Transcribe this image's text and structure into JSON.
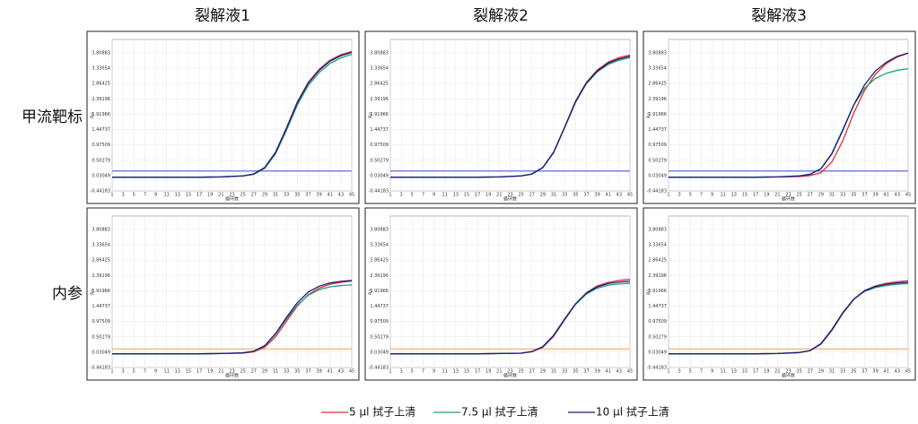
{
  "axes": {
    "xlim": [
      1,
      45
    ],
    "ylim": [
      -0.44183,
      4.22
    ],
    "xticks": [
      1,
      3,
      5,
      7,
      9,
      11,
      13,
      15,
      17,
      19,
      21,
      23,
      25,
      27,
      29,
      31,
      33,
      35,
      37,
      39,
      41,
      43,
      45
    ],
    "yticks": [
      -0.44183,
      0.03049,
      0.50279,
      0.97509,
      1.44737,
      1.91966,
      2.39196,
      2.86425,
      3.33654,
      3.80883
    ],
    "x_label": "循环数",
    "y_label": "Rn",
    "grid": true
  },
  "row_labels": [
    "甲流靶标",
    "内参"
  ],
  "legend": [
    {
      "name": "5 μl 拭子上清",
      "color": "#e03030"
    },
    {
      "name": "7.5 μl 拭子上清",
      "color": "#1aa37a"
    },
    {
      "name": "10 μl 拭子上清",
      "color": "#1a1a80"
    }
  ],
  "chart_data": [
    {
      "type": "line",
      "title": "裂解液1",
      "x": [
        1,
        5,
        9,
        13,
        17,
        21,
        25,
        27,
        29,
        31,
        33,
        35,
        37,
        39,
        41,
        43,
        45
      ],
      "threshold": {
        "value": 0.17,
        "color": "#4a5ad8"
      },
      "series": [
        {
          "values": [
            -0.02,
            -0.02,
            -0.02,
            -0.02,
            -0.02,
            -0.01,
            0.02,
            0.08,
            0.28,
            0.75,
            1.5,
            2.3,
            2.9,
            3.3,
            3.58,
            3.75,
            3.85
          ]
        },
        {
          "values": [
            -0.02,
            -0.02,
            -0.02,
            -0.02,
            -0.02,
            -0.01,
            0.02,
            0.07,
            0.25,
            0.7,
            1.42,
            2.2,
            2.8,
            3.2,
            3.48,
            3.65,
            3.76
          ]
        },
        {
          "values": [
            -0.02,
            -0.02,
            -0.02,
            -0.02,
            -0.02,
            -0.01,
            0.02,
            0.08,
            0.27,
            0.74,
            1.48,
            2.27,
            2.87,
            3.27,
            3.55,
            3.72,
            3.82
          ]
        }
      ]
    },
    {
      "type": "line",
      "title": "裂解液2",
      "x": [
        1,
        5,
        9,
        13,
        17,
        21,
        25,
        27,
        29,
        31,
        33,
        35,
        37,
        39,
        41,
        43,
        45
      ],
      "threshold": {
        "value": 0.17,
        "color": "#4a5ad8"
      },
      "series": [
        {
          "values": [
            -0.02,
            -0.02,
            -0.02,
            -0.02,
            -0.02,
            -0.01,
            0.02,
            0.08,
            0.28,
            0.76,
            1.52,
            2.32,
            2.9,
            3.28,
            3.52,
            3.66,
            3.74
          ]
        },
        {
          "values": [
            -0.02,
            -0.02,
            -0.02,
            -0.02,
            -0.02,
            -0.01,
            0.02,
            0.08,
            0.27,
            0.74,
            1.5,
            2.28,
            2.86,
            3.22,
            3.45,
            3.58,
            3.66
          ]
        },
        {
          "values": [
            -0.02,
            -0.02,
            -0.02,
            -0.02,
            -0.02,
            -0.01,
            0.02,
            0.08,
            0.28,
            0.75,
            1.51,
            2.3,
            2.88,
            3.25,
            3.49,
            3.62,
            3.7
          ]
        }
      ]
    },
    {
      "type": "line",
      "title": "裂解液3",
      "x": [
        1,
        5,
        9,
        13,
        17,
        21,
        25,
        27,
        29,
        31,
        33,
        35,
        37,
        39,
        41,
        43,
        45
      ],
      "threshold": {
        "value": 0.17,
        "color": "#4a5ad8"
      },
      "series": [
        {
          "values": [
            -0.02,
            -0.02,
            -0.02,
            -0.02,
            -0.02,
            -0.01,
            0.0,
            0.03,
            0.12,
            0.45,
            1.1,
            1.95,
            2.65,
            3.15,
            3.48,
            3.68,
            3.8
          ]
        },
        {
          "values": [
            -0.02,
            -0.02,
            -0.02,
            -0.02,
            -0.02,
            -0.01,
            0.02,
            0.07,
            0.25,
            0.72,
            1.45,
            2.2,
            2.72,
            3.02,
            3.18,
            3.27,
            3.32
          ]
        },
        {
          "values": [
            -0.02,
            -0.02,
            -0.02,
            -0.02,
            -0.02,
            -0.01,
            0.02,
            0.07,
            0.24,
            0.7,
            1.42,
            2.2,
            2.82,
            3.25,
            3.52,
            3.7,
            3.8
          ]
        }
      ]
    },
    {
      "type": "line",
      "x": [
        1,
        5,
        9,
        13,
        17,
        21,
        25,
        27,
        29,
        31,
        33,
        35,
        37,
        39,
        41,
        43,
        45
      ],
      "threshold": {
        "value": 0.13,
        "color": "#f5b070"
      },
      "series": [
        {
          "values": [
            -0.02,
            -0.02,
            -0.02,
            -0.02,
            -0.02,
            -0.01,
            0.0,
            0.04,
            0.18,
            0.5,
            0.98,
            1.45,
            1.8,
            2.0,
            2.12,
            2.18,
            2.22
          ]
        },
        {
          "values": [
            -0.02,
            -0.02,
            -0.02,
            -0.02,
            -0.02,
            -0.01,
            0.01,
            0.06,
            0.22,
            0.58,
            1.05,
            1.48,
            1.78,
            1.95,
            2.04,
            2.08,
            2.1
          ]
        },
        {
          "values": [
            -0.02,
            -0.02,
            -0.02,
            -0.02,
            -0.02,
            -0.01,
            0.01,
            0.06,
            0.23,
            0.6,
            1.1,
            1.55,
            1.88,
            2.06,
            2.16,
            2.21,
            2.24
          ]
        }
      ]
    },
    {
      "type": "line",
      "x": [
        1,
        5,
        9,
        13,
        17,
        21,
        25,
        27,
        29,
        31,
        33,
        35,
        37,
        39,
        41,
        43,
        45
      ],
      "threshold": {
        "value": 0.13,
        "color": "#f5b070"
      },
      "series": [
        {
          "values": [
            -0.02,
            -0.02,
            -0.02,
            -0.02,
            -0.02,
            -0.01,
            0.0,
            0.04,
            0.18,
            0.52,
            1.02,
            1.5,
            1.86,
            2.07,
            2.18,
            2.24,
            2.27
          ]
        },
        {
          "values": [
            -0.02,
            -0.02,
            -0.02,
            -0.02,
            -0.02,
            -0.01,
            0.0,
            0.05,
            0.2,
            0.55,
            1.04,
            1.5,
            1.82,
            2.0,
            2.09,
            2.13,
            2.15
          ]
        },
        {
          "values": [
            -0.02,
            -0.02,
            -0.02,
            -0.02,
            -0.02,
            -0.01,
            0.0,
            0.05,
            0.2,
            0.55,
            1.05,
            1.52,
            1.85,
            2.04,
            2.14,
            2.19,
            2.21
          ]
        }
      ]
    },
    {
      "type": "line",
      "x": [
        1,
        5,
        9,
        13,
        17,
        21,
        25,
        27,
        29,
        31,
        33,
        35,
        37,
        39,
        41,
        43,
        45
      ],
      "threshold": {
        "value": 0.13,
        "color": "#f5b070"
      },
      "series": [
        {
          "values": [
            -0.02,
            -0.02,
            -0.02,
            -0.02,
            -0.02,
            -0.01,
            0.02,
            0.08,
            0.28,
            0.7,
            1.22,
            1.65,
            1.93,
            2.07,
            2.15,
            2.2,
            2.23
          ]
        },
        {
          "values": [
            -0.02,
            -0.02,
            -0.02,
            -0.02,
            -0.02,
            -0.01,
            0.02,
            0.08,
            0.3,
            0.73,
            1.25,
            1.66,
            1.9,
            2.02,
            2.08,
            2.12,
            2.14
          ]
        },
        {
          "values": [
            -0.02,
            -0.02,
            -0.02,
            -0.02,
            -0.02,
            -0.01,
            0.02,
            0.08,
            0.29,
            0.72,
            1.24,
            1.66,
            1.92,
            2.05,
            2.12,
            2.16,
            2.18
          ]
        }
      ]
    }
  ]
}
